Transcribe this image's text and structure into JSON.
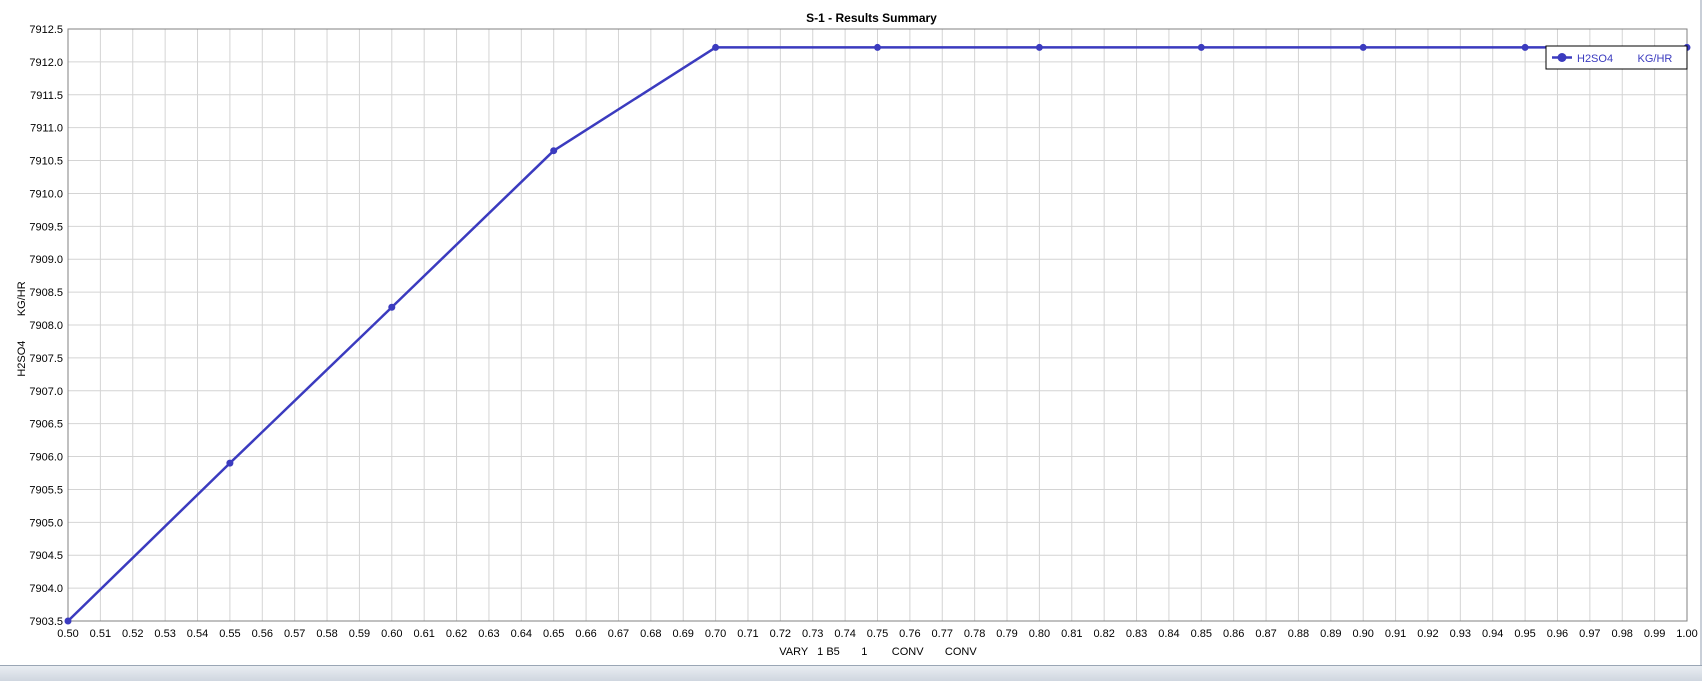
{
  "chart_data": {
    "type": "line",
    "title": "S-1 - Results Summary",
    "xlabel": "VARY   1 B5       1        CONV       CONV",
    "ylabel": "H2SO4        KG/HR",
    "xlim": [
      0.5,
      1.0
    ],
    "ylim": [
      7903.5,
      7912.5
    ],
    "x_ticks": [
      "0.50",
      "0.51",
      "0.52",
      "0.53",
      "0.54",
      "0.55",
      "0.56",
      "0.57",
      "0.58",
      "0.59",
      "0.60",
      "0.61",
      "0.62",
      "0.63",
      "0.64",
      "0.65",
      "0.66",
      "0.67",
      "0.68",
      "0.69",
      "0.70",
      "0.71",
      "0.72",
      "0.73",
      "0.74",
      "0.75",
      "0.76",
      "0.77",
      "0.78",
      "0.79",
      "0.80",
      "0.81",
      "0.82",
      "0.83",
      "0.84",
      "0.85",
      "0.86",
      "0.87",
      "0.88",
      "0.89",
      "0.90",
      "0.91",
      "0.92",
      "0.93",
      "0.94",
      "0.95",
      "0.96",
      "0.97",
      "0.98",
      "0.99",
      "1.00"
    ],
    "y_ticks": [
      "7903.5",
      "7904.0",
      "7904.5",
      "7905.0",
      "7905.5",
      "7906.0",
      "7906.5",
      "7907.0",
      "7907.5",
      "7908.0",
      "7908.5",
      "7909.0",
      "7909.5",
      "7910.0",
      "7910.5",
      "7911.0",
      "7911.5",
      "7912.0",
      "7912.5"
    ],
    "grid": true,
    "legend_position": "top-right",
    "series": [
      {
        "name": "H2SO4        KG/HR",
        "color": "#3b3bbf",
        "x": [
          0.5,
          0.55,
          0.6,
          0.65,
          0.7,
          0.75,
          0.8,
          0.85,
          0.9,
          0.95,
          1.0
        ],
        "y": [
          7903.5,
          7905.9,
          7908.27,
          7910.65,
          7912.22,
          7912.22,
          7912.22,
          7912.22,
          7912.22,
          7912.22,
          7912.22
        ]
      }
    ]
  }
}
